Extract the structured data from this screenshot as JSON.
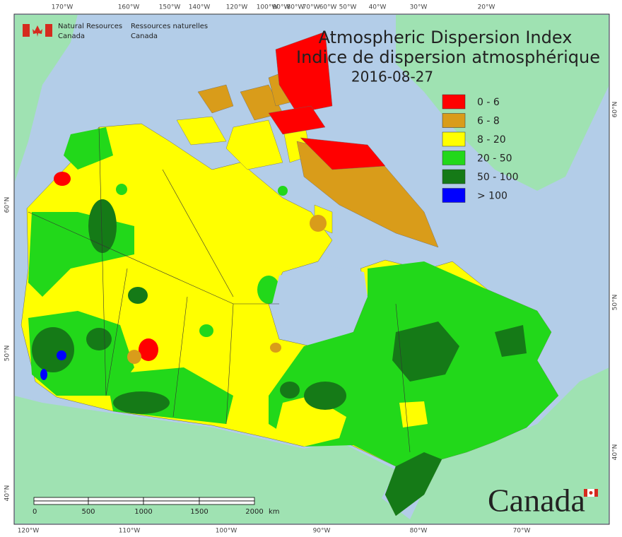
{
  "header": {
    "agency_en": [
      "Natural Resources",
      "Canada"
    ],
    "agency_fr": [
      "Ressources naturelles",
      "Canada"
    ]
  },
  "title": {
    "line1": "Atmospheric Dispersion Index",
    "line2": "Indice de dispersion atmosphérique",
    "date": "2016-08-27"
  },
  "legend": [
    {
      "label": "0 - 6",
      "color": "#ff0000"
    },
    {
      "label": "6 - 8",
      "color": "#d99c1a"
    },
    {
      "label": "8 - 20",
      "color": "#ffff00"
    },
    {
      "label": "20 - 50",
      "color": "#22d81a"
    },
    {
      "label": "50 - 100",
      "color": "#157a17"
    },
    {
      "label": "> 100",
      "color": "#0000ff"
    }
  ],
  "graticule": {
    "top": [
      "170°W",
      "160°W",
      "150°W",
      "140°W",
      "120°W",
      "100°W",
      "90°W",
      "80°W",
      "70°W",
      "60°W",
      "50°W",
      "40°W",
      "30°W",
      "20°W"
    ],
    "bottom": [
      "120°W",
      "110°W",
      "100°W",
      "90°W",
      "80°W",
      "70°W"
    ],
    "left": [
      "60°N",
      "50°N",
      "40°N"
    ],
    "right": [
      "60°N",
      "50°N",
      "40°N"
    ]
  },
  "scale": {
    "ticks": [
      "0",
      "500",
      "1000",
      "1500",
      "2000"
    ],
    "unit": "km"
  },
  "wordmark": "Canada"
}
